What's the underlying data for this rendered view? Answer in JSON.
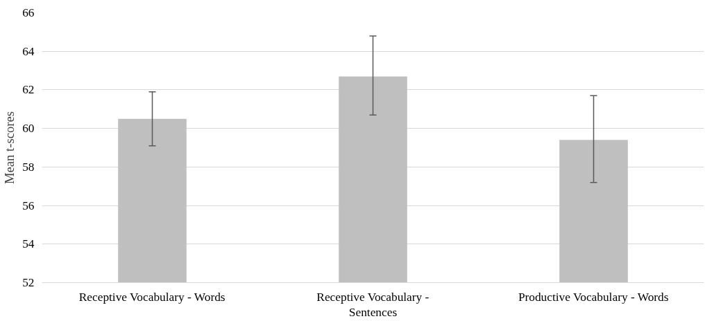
{
  "chart_data": {
    "type": "bar",
    "ylabel": "Mean t-scores",
    "categories": [
      "Receptive Vocabulary - Words",
      "Receptive Vocabulary - Sentences",
      "Productive Vocabulary - Words"
    ],
    "values": [
      60.5,
      62.7,
      59.4
    ],
    "color": "#bfbfbf",
    "errors": [
      [
        59.1,
        61.9
      ],
      [
        60.7,
        64.8
      ],
      [
        57.2,
        61.7
      ]
    ],
    "ylim": [
      52,
      66
    ],
    "yticks": [
      52,
      54,
      56,
      58,
      60,
      62,
      64,
      66
    ],
    "grid": "y"
  }
}
